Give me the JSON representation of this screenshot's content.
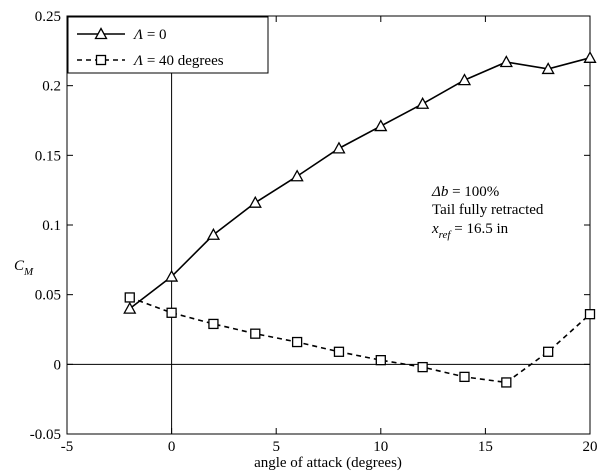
{
  "chart_data": {
    "type": "line",
    "x_label": "angle of attack (degrees)",
    "y_label": {
      "main": "C",
      "sub": "M"
    },
    "xlim": [
      -5,
      20
    ],
    "ylim": [
      -0.05,
      0.25
    ],
    "xticks": [
      -5,
      0,
      5,
      10,
      15,
      20
    ],
    "yticks": [
      -0.05,
      0,
      0.05,
      0.1,
      0.15,
      0.2,
      0.25
    ],
    "xtick_labels": [
      "-5",
      "0",
      "5",
      "10",
      "15",
      "20"
    ],
    "ytick_labels": [
      "-0.05",
      "0",
      "0.05",
      "0.1",
      "0.15",
      "0.2",
      "0.25"
    ],
    "grid": false,
    "zero_lines": true,
    "legend_position": "top-left",
    "series": [
      {
        "name": {
          "symbol": "Λ",
          "rest": " = 0"
        },
        "marker": "triangle",
        "line": "solid",
        "x": [
          -2,
          0,
          2,
          4,
          6,
          8,
          10,
          12,
          14,
          16,
          18,
          20
        ],
        "y": [
          0.04,
          0.063,
          0.093,
          0.116,
          0.135,
          0.155,
          0.171,
          0.187,
          0.204,
          0.217,
          0.212,
          0.22
        ]
      },
      {
        "name": {
          "symbol": "Λ",
          "rest": " = 40 degrees"
        },
        "marker": "square",
        "line": "dashed",
        "x": [
          -2,
          0,
          2,
          4,
          6,
          8,
          10,
          12,
          14,
          16,
          18,
          20
        ],
        "y": [
          0.048,
          0.037,
          0.029,
          0.022,
          0.016,
          0.009,
          0.003,
          -0.002,
          -0.009,
          -0.013,
          0.009,
          0.036
        ]
      }
    ],
    "annotation": {
      "line1": {
        "symbol": "Δ",
        "italic": "b",
        "rest": " = 100%"
      },
      "line2": "Tail fully retracted",
      "line3": {
        "italic": "x",
        "sub": "ref",
        "rest": " = 16.5 in"
      }
    }
  }
}
